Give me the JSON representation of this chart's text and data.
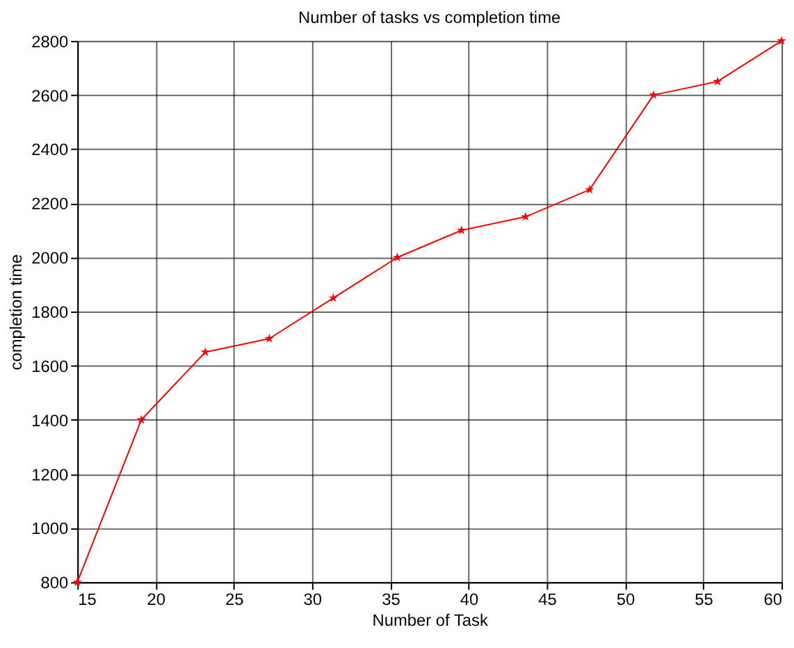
{
  "chart_data": {
    "type": "line",
    "title": "Number of tasks vs completion time",
    "xlabel": "Number of Task",
    "ylabel": "completion time",
    "x": [
      15,
      19.09,
      23.18,
      27.27,
      31.36,
      35.45,
      39.55,
      43.64,
      47.73,
      51.82,
      55.91,
      60
    ],
    "series": [
      {
        "color": "#ff0000",
        "values": [
          800,
          1400,
          1650,
          1700,
          1850,
          2000,
          2100,
          2150,
          2250,
          2600,
          2650,
          2800
        ]
      }
    ],
    "xlim": [
      15,
      60
    ],
    "xticks": [
      15,
      20,
      25,
      30,
      35,
      40,
      45,
      50,
      55,
      60
    ],
    "ylim": [
      800,
      2800
    ],
    "yticks": [
      800,
      1000,
      1200,
      1400,
      1600,
      1800,
      2000,
      2200,
      2400,
      2600,
      2800
    ],
    "grid": true,
    "marker": "star",
    "line_style": "solid"
  }
}
